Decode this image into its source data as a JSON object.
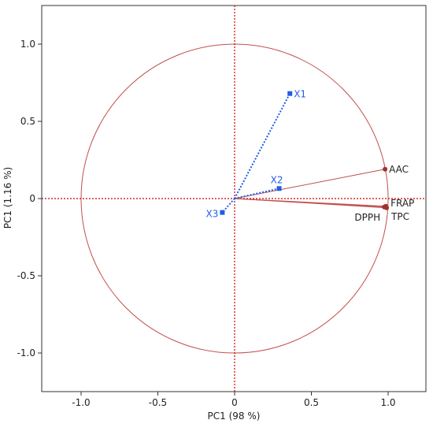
{
  "chart_data": {
    "type": "scatter",
    "title": "",
    "xlabel": "PC1  (98 %)",
    "ylabel": "PC1  (1.16 %)",
    "xlim": [
      -1.25,
      1.25
    ],
    "ylim": [
      -1.25,
      1.25
    ],
    "xticks": [
      {
        "value": -1.0,
        "label": "-1.0"
      },
      {
        "value": -0.5,
        "label": "-0.5"
      },
      {
        "value": 0.0,
        "label": "0"
      },
      {
        "value": 0.5,
        "label": "0.5"
      },
      {
        "value": 1.0,
        "label": "1.0"
      }
    ],
    "yticks": [
      {
        "value": 1.0,
        "label": "1.0"
      },
      {
        "value": 0.5,
        "label": "0.5"
      },
      {
        "value": 0.0,
        "label": "0"
      },
      {
        "value": -0.5,
        "label": "-0.5"
      },
      {
        "value": -1.0,
        "label": "-1.0"
      }
    ],
    "correlation_circle_radius": 1.0,
    "zero_lines": true,
    "grid": false,
    "variables": [
      {
        "label": "AAC",
        "x": 0.98,
        "y": 0.19
      },
      {
        "label": "FRAP",
        "x": 0.985,
        "y": -0.05
      },
      {
        "label": "TPC",
        "x": 0.99,
        "y": -0.06
      },
      {
        "label": "DPPH",
        "x": 0.975,
        "y": -0.055
      }
    ],
    "observations": [
      {
        "label": "X1",
        "x": 0.36,
        "y": 0.68
      },
      {
        "label": "X2",
        "x": 0.29,
        "y": 0.065
      },
      {
        "label": "X3",
        "x": -0.08,
        "y": -0.09
      }
    ],
    "colors": {
      "circle": "#c0504d",
      "variable_vector": "#c0504d",
      "variable_point": "#a0322d",
      "observation": "#1f5ee6",
      "zero_line": "#cc0000",
      "frame": "#333333"
    }
  }
}
